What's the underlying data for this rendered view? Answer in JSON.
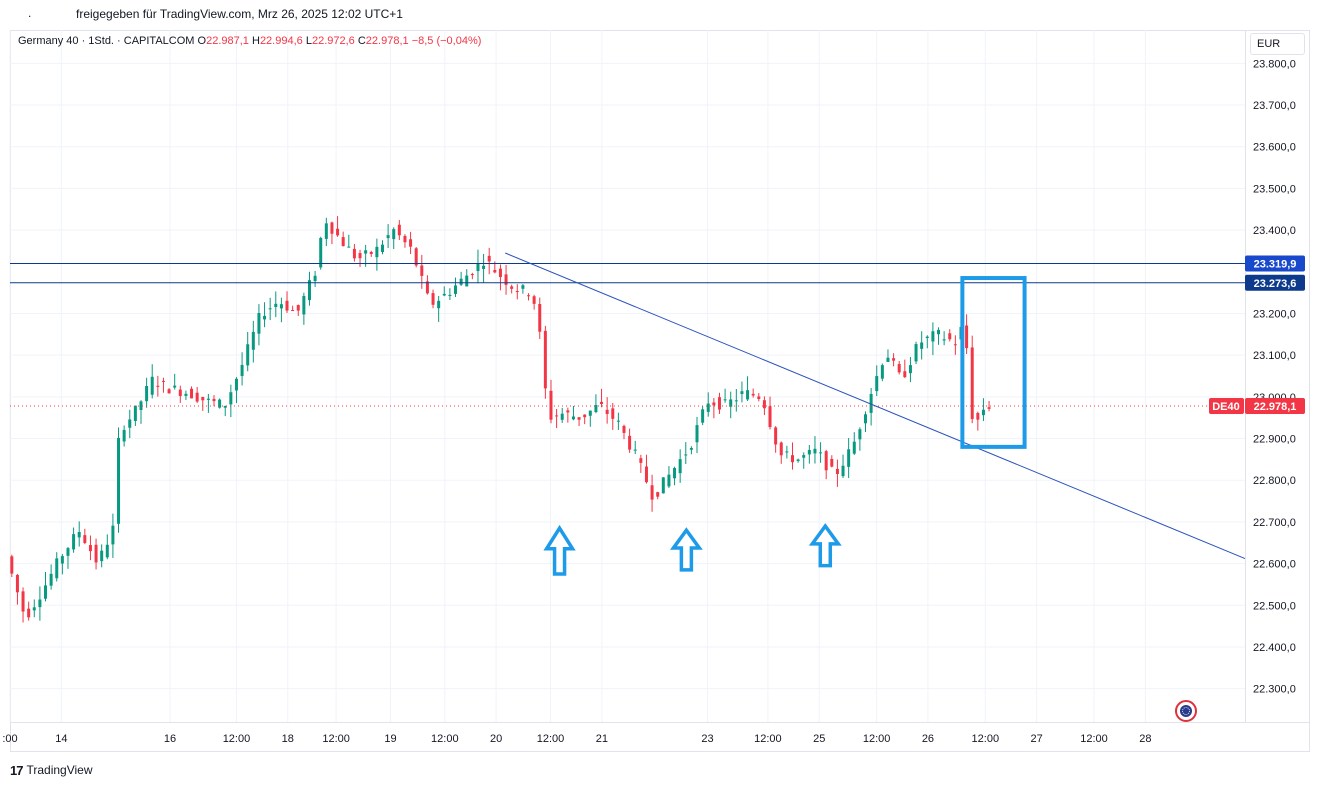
{
  "header": {
    "text": "freigegeben für TradingView.com, Mrz 26, 2025 12:02 UTC+1",
    "dot": "."
  },
  "legend": {
    "symbol": "Germany 40 · 1Std. · CAPITALCOM",
    "o_label": "O",
    "o": "22.987,1",
    "h_label": "H",
    "h": "22.994,6",
    "l_label": "L",
    "l": "22.972,6",
    "c_label": "C",
    "c": "22.978,1",
    "change": "−8,5 (−0,04%)"
  },
  "currency": "EUR",
  "footer": {
    "logo": "17",
    "brand": "TradingView"
  },
  "colors": {
    "up": "#089981",
    "down": "#f23645",
    "trend": "#2a52be",
    "level": "#0e3a8c",
    "annotation": "#1e9be8",
    "grid": "#f0f3fa"
  },
  "chart_data": {
    "type": "candlestick",
    "y_range": [
      22220,
      23880
    ],
    "price_ticks": [
      {
        "value": 23800,
        "label": "23.800,0"
      },
      {
        "value": 23700,
        "label": "23.700,0"
      },
      {
        "value": 23600,
        "label": "23.600,0"
      },
      {
        "value": 23500,
        "label": "23.500,0"
      },
      {
        "value": 23400,
        "label": "23.400,0"
      },
      {
        "value": 23200,
        "label": "23.200,0"
      },
      {
        "value": 23100,
        "label": "23.100,0"
      },
      {
        "value": 23000,
        "label": "23.000,0"
      },
      {
        "value": 22900,
        "label": "22.900,0"
      },
      {
        "value": 22800,
        "label": "22.800,0"
      },
      {
        "value": 22700,
        "label": "22.700,0"
      },
      {
        "value": 22600,
        "label": "22.600,0"
      },
      {
        "value": 22500,
        "label": "22.500,0"
      },
      {
        "value": 22400,
        "label": "22.400,0"
      },
      {
        "value": 22300,
        "label": "22.300,0"
      }
    ],
    "time_ticks": [
      {
        "x": 0.0,
        "label": ":00"
      },
      {
        "x": 0.85,
        "label": "14"
      },
      {
        "x": 2.65,
        "label": "16"
      },
      {
        "x": 3.75,
        "label": "12:00"
      },
      {
        "x": 4.6,
        "label": "18"
      },
      {
        "x": 5.4,
        "label": "12:00"
      },
      {
        "x": 6.3,
        "label": "19"
      },
      {
        "x": 7.2,
        "label": "12:00"
      },
      {
        "x": 8.05,
        "label": "20"
      },
      {
        "x": 8.95,
        "label": "12:00"
      },
      {
        "x": 9.8,
        "label": "21"
      },
      {
        "x": 11.55,
        "label": "23"
      },
      {
        "x": 12.55,
        "label": "12:00"
      },
      {
        "x": 13.4,
        "label": "25"
      },
      {
        "x": 14.35,
        "label": "12:00"
      },
      {
        "x": 15.2,
        "label": "26"
      },
      {
        "x": 16.15,
        "label": "12:00"
      },
      {
        "x": 17.0,
        "label": "27"
      },
      {
        "x": 17.95,
        "label": "12:00"
      },
      {
        "x": 18.8,
        "label": "28"
      }
    ],
    "x_range": [
      0.0,
      20.45
    ],
    "price_path": [
      [
        0,
        22610
      ],
      [
        0.3,
        22470
      ],
      [
        0.6,
        22540
      ],
      [
        0.9,
        22620
      ],
      [
        1.2,
        22680
      ],
      [
        1.5,
        22600
      ],
      [
        1.8,
        22700
      ],
      [
        1.85,
        22920
      ],
      [
        2.1,
        22960
      ],
      [
        2.4,
        23040
      ],
      [
        2.7,
        23020
      ],
      [
        3.0,
        23010
      ],
      [
        3.3,
        22990
      ],
      [
        3.6,
        22980
      ],
      [
        3.9,
        23080
      ],
      [
        4.2,
        23200
      ],
      [
        4.5,
        23230
      ],
      [
        4.8,
        23200
      ],
      [
        5.1,
        23300
      ],
      [
        5.25,
        23430
      ],
      [
        5.5,
        23380
      ],
      [
        5.8,
        23330
      ],
      [
        6.1,
        23350
      ],
      [
        6.4,
        23400
      ],
      [
        6.7,
        23350
      ],
      [
        7.0,
        23220
      ],
      [
        7.3,
        23250
      ],
      [
        7.6,
        23290
      ],
      [
        7.9,
        23330
      ],
      [
        8.1,
        23300
      ],
      [
        8.4,
        23260
      ],
      [
        8.7,
        23250
      ],
      [
        8.85,
        23120
      ],
      [
        8.95,
        22950
      ],
      [
        9.2,
        22960
      ],
      [
        9.5,
        22950
      ],
      [
        9.8,
        22980
      ],
      [
        10.1,
        22940
      ],
      [
        10.4,
        22860
      ],
      [
        10.7,
        22760
      ],
      [
        11.0,
        22820
      ],
      [
        11.3,
        22880
      ],
      [
        11.6,
        22990
      ],
      [
        11.9,
        22980
      ],
      [
        12.2,
        23010
      ],
      [
        12.5,
        23000
      ],
      [
        12.8,
        22860
      ],
      [
        13.1,
        22850
      ],
      [
        13.4,
        22870
      ],
      [
        13.7,
        22810
      ],
      [
        14.0,
        22880
      ],
      [
        14.3,
        23010
      ],
      [
        14.55,
        23110
      ],
      [
        14.8,
        23040
      ],
      [
        15.1,
        23130
      ],
      [
        15.4,
        23150
      ],
      [
        15.7,
        23130
      ],
      [
        15.85,
        23180
      ],
      [
        16.0,
        22920
      ],
      [
        16.15,
        22970
      ],
      [
        16.22,
        22978
      ]
    ],
    "candle_amplitude": 28,
    "levels": [
      {
        "value": 23319.9,
        "label": "23.319,9"
      },
      {
        "value": 23273.6,
        "label": "23.273,6"
      }
    ],
    "current_price": {
      "value": 22978.1,
      "label": "22.978,1",
      "symbol_tag": "DE40"
    },
    "trendline": {
      "start": {
        "x": 8.2,
        "y": 23345
      },
      "end": {
        "x": 20.45,
        "y": 22612
      }
    },
    "annotation_box": {
      "x0": 15.77,
      "x1": 16.8,
      "y0": 22880,
      "y1": 23285
    },
    "arrows": [
      {
        "x": 9.1,
        "y_top": 22685,
        "y_bottom": 22575
      },
      {
        "x": 11.2,
        "y_top": 22680,
        "y_bottom": 22585
      },
      {
        "x": 13.5,
        "y_top": 22690,
        "y_bottom": 22595
      }
    ]
  }
}
